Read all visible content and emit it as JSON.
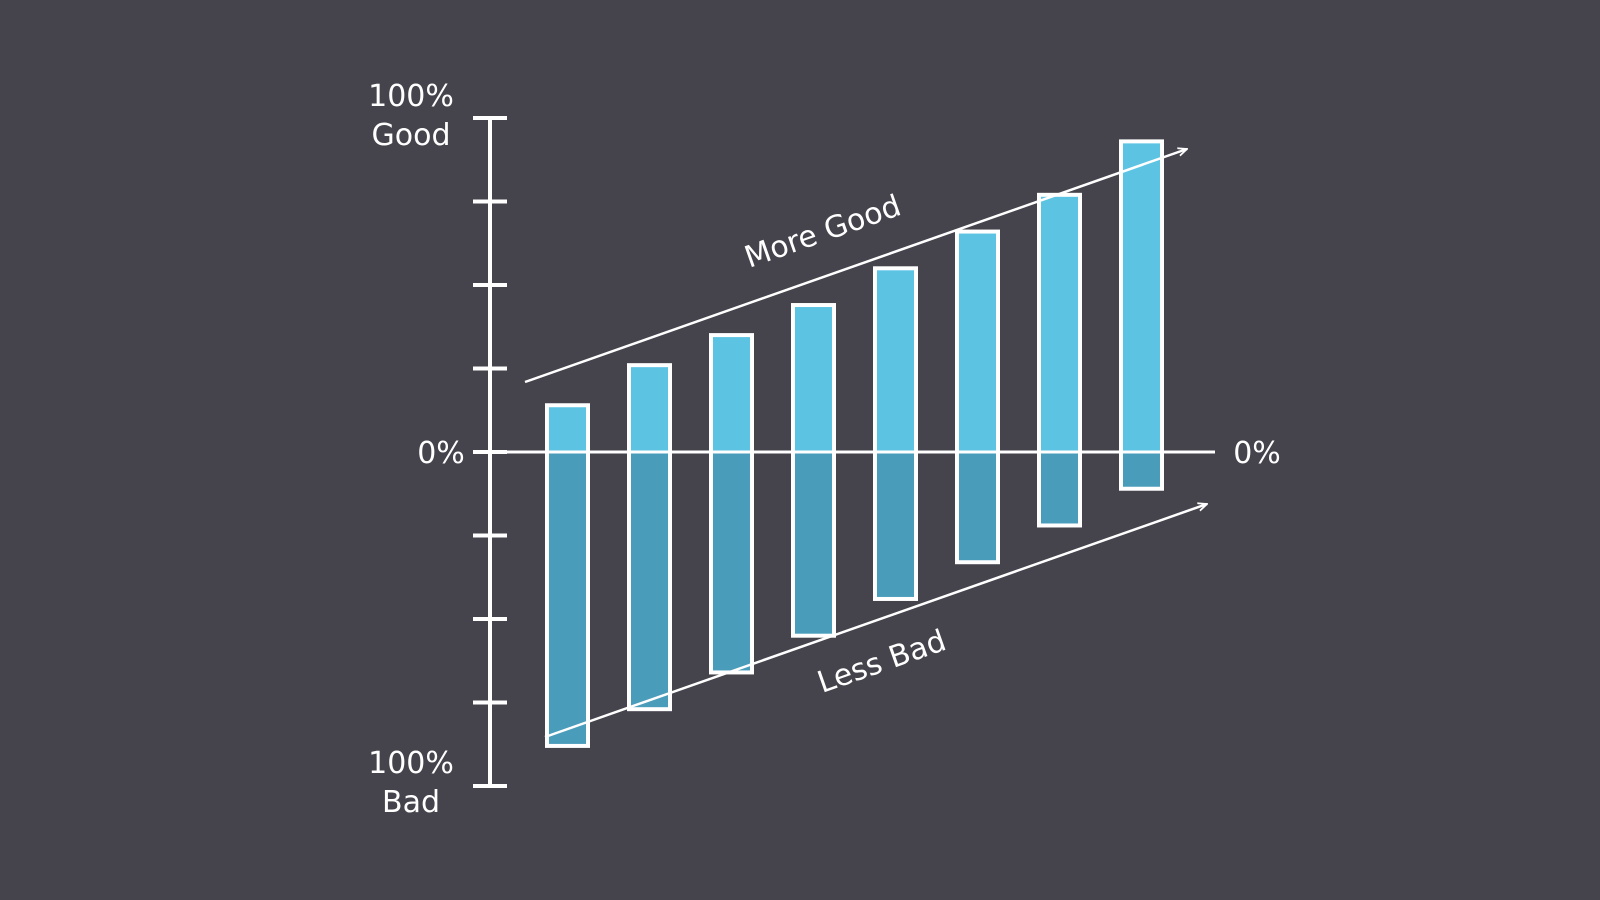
{
  "colors": {
    "background": "#45434c",
    "axis": "#ffffff",
    "good_fill": "#5cc3e3",
    "bad_fill": "#4a9cbb",
    "bar_stroke": "#ffffff"
  },
  "chart_data": {
    "type": "bar",
    "stacking": "diverging",
    "categories": [
      "",
      "",
      "",
      "",
      "",
      "",
      "",
      ""
    ],
    "series": [
      {
        "values": [
          0.14,
          0.26,
          0.35,
          0.44,
          0.55,
          0.66,
          0.77,
          0.93
        ]
      },
      {
        "values": [
          -0.88,
          -0.77,
          -0.66,
          -0.55,
          -0.44,
          -0.33,
          -0.22,
          -0.11
        ]
      }
    ],
    "ylim": [
      -1,
      1
    ],
    "yticks": [
      -1,
      -0.75,
      -0.5,
      -0.25,
      0,
      0.25,
      0.5,
      0.75,
      1
    ],
    "y_top_label": {
      "line1": "100%",
      "line2": "Good"
    },
    "y_zero_label": "0%",
    "y_bottom_label": {
      "line1": "100%",
      "line2": "Bad"
    },
    "right_zero_label": "0%",
    "annotations": {
      "upper_arrow": "More Good",
      "lower_arrow": "Less Bad"
    },
    "grid": false,
    "legend": "none"
  }
}
